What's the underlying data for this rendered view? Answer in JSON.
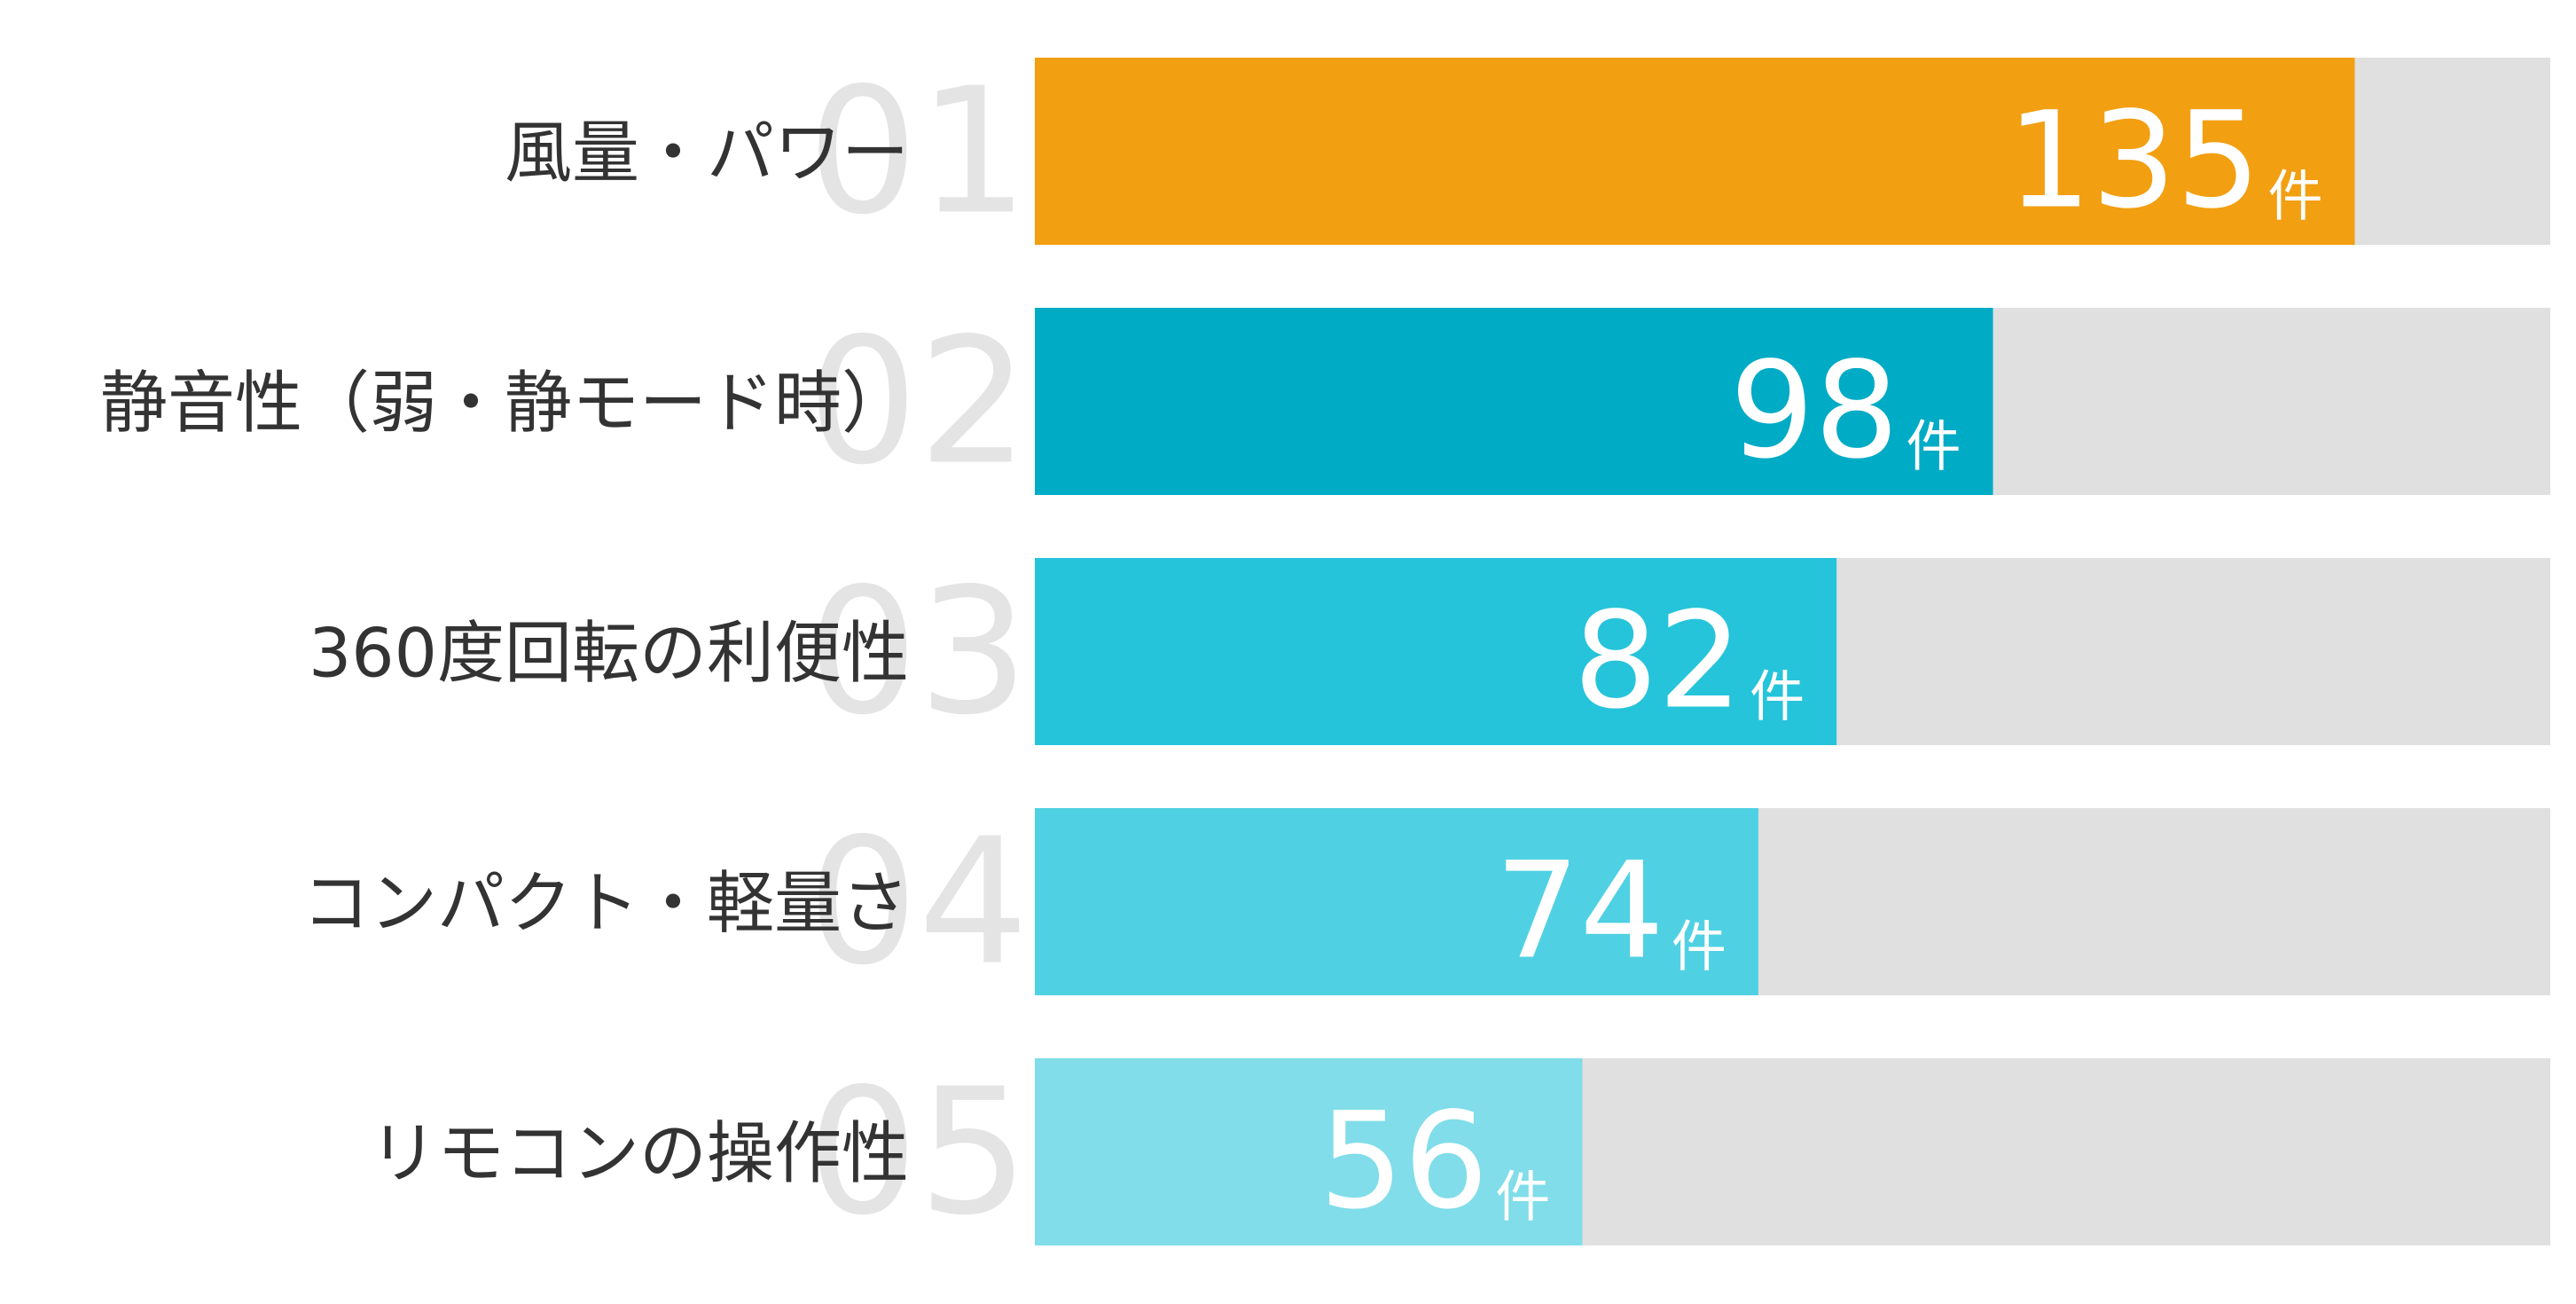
{
  "chart_data": {
    "type": "bar",
    "orientation": "horizontal",
    "categories": [
      "風量・パワー",
      "静音性（弱・静モード時）",
      "360度回転の利便性",
      "コンパクト・軽量さ",
      "リモコンの操作性"
    ],
    "ranks": [
      "01",
      "02",
      "03",
      "04",
      "05"
    ],
    "values": [
      135,
      98,
      82,
      74,
      56
    ],
    "unit": "件",
    "colors": [
      "#f29f12",
      "#00abc5",
      "#26c4da",
      "#50d1e3",
      "#80dde9"
    ],
    "track_color": "#e0e0e0",
    "xlim": [
      0,
      155
    ]
  }
}
